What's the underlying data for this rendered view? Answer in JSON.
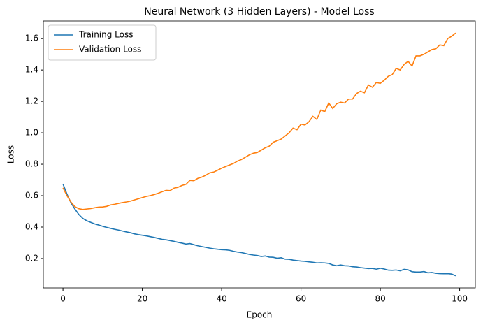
{
  "chart_data": {
    "type": "line",
    "title": "Neural Network (3 Hidden Layers) - Model Loss",
    "x_label": "Epoch",
    "y_label": "Loss",
    "x": [
      0,
      1,
      2,
      3,
      4,
      5,
      6,
      7,
      8,
      9,
      10,
      11,
      12,
      13,
      14,
      15,
      16,
      17,
      18,
      19,
      20,
      21,
      22,
      23,
      24,
      25,
      26,
      27,
      28,
      29,
      30,
      31,
      32,
      33,
      34,
      35,
      36,
      37,
      38,
      39,
      40,
      41,
      42,
      43,
      44,
      45,
      46,
      47,
      48,
      49,
      50,
      51,
      52,
      53,
      54,
      55,
      56,
      57,
      58,
      59,
      60,
      61,
      62,
      63,
      64,
      65,
      66,
      67,
      68,
      69,
      70,
      71,
      72,
      73,
      74,
      75,
      76,
      77,
      78,
      79,
      80,
      81,
      82,
      83,
      84,
      85,
      86,
      87,
      88,
      89,
      90,
      91,
      92,
      93,
      94,
      95,
      96,
      97,
      98,
      99
    ],
    "series": [
      {
        "name": "Training Loss",
        "color": "#1f77b4",
        "values": [
          0.675,
          0.61,
          0.555,
          0.515,
          0.48,
          0.455,
          0.44,
          0.43,
          0.42,
          0.413,
          0.405,
          0.398,
          0.392,
          0.386,
          0.381,
          0.375,
          0.369,
          0.364,
          0.357,
          0.352,
          0.348,
          0.344,
          0.339,
          0.334,
          0.328,
          0.322,
          0.319,
          0.314,
          0.309,
          0.303,
          0.298,
          0.292,
          0.295,
          0.288,
          0.281,
          0.276,
          0.271,
          0.266,
          0.262,
          0.259,
          0.256,
          0.255,
          0.252,
          0.246,
          0.241,
          0.238,
          0.232,
          0.226,
          0.222,
          0.219,
          0.213,
          0.216,
          0.209,
          0.208,
          0.202,
          0.205,
          0.196,
          0.195,
          0.19,
          0.187,
          0.184,
          0.182,
          0.179,
          0.176,
          0.172,
          0.173,
          0.172,
          0.169,
          0.159,
          0.154,
          0.159,
          0.154,
          0.153,
          0.148,
          0.146,
          0.142,
          0.139,
          0.136,
          0.137,
          0.132,
          0.138,
          0.133,
          0.126,
          0.125,
          0.127,
          0.122,
          0.131,
          0.128,
          0.116,
          0.114,
          0.114,
          0.117,
          0.109,
          0.111,
          0.106,
          0.104,
          0.103,
          0.104,
          0.101,
          0.09
        ]
      },
      {
        "name": "Validation Loss",
        "color": "#ff7f0e",
        "values": [
          0.65,
          0.6,
          0.56,
          0.53,
          0.517,
          0.512,
          0.515,
          0.518,
          0.523,
          0.527,
          0.528,
          0.532,
          0.541,
          0.545,
          0.551,
          0.556,
          0.56,
          0.565,
          0.573,
          0.58,
          0.588,
          0.595,
          0.6,
          0.607,
          0.615,
          0.625,
          0.634,
          0.632,
          0.648,
          0.653,
          0.665,
          0.672,
          0.697,
          0.695,
          0.71,
          0.718,
          0.73,
          0.745,
          0.75,
          0.762,
          0.775,
          0.785,
          0.795,
          0.805,
          0.82,
          0.83,
          0.845,
          0.86,
          0.87,
          0.875,
          0.89,
          0.905,
          0.915,
          0.94,
          0.95,
          0.96,
          0.98,
          1.0,
          1.03,
          1.02,
          1.055,
          1.05,
          1.07,
          1.105,
          1.085,
          1.145,
          1.135,
          1.19,
          1.155,
          1.185,
          1.195,
          1.19,
          1.215,
          1.215,
          1.25,
          1.265,
          1.255,
          1.305,
          1.29,
          1.32,
          1.315,
          1.335,
          1.36,
          1.37,
          1.41,
          1.4,
          1.435,
          1.455,
          1.425,
          1.49,
          1.49,
          1.5,
          1.515,
          1.53,
          1.535,
          1.56,
          1.555,
          1.6,
          1.615,
          1.635
        ]
      }
    ],
    "xlim": [
      -4.95,
      103.95
    ],
    "xticks": [
      0,
      20,
      40,
      60,
      80,
      100
    ],
    "ylim": [
      0.013,
      1.712
    ],
    "yticks": [
      0.2,
      0.4,
      0.6,
      0.8,
      {
        "value": 1,
        "label": "1.0"
      },
      1.2,
      1.4,
      1.6
    ],
    "grid": false,
    "legend": "upper left"
  }
}
